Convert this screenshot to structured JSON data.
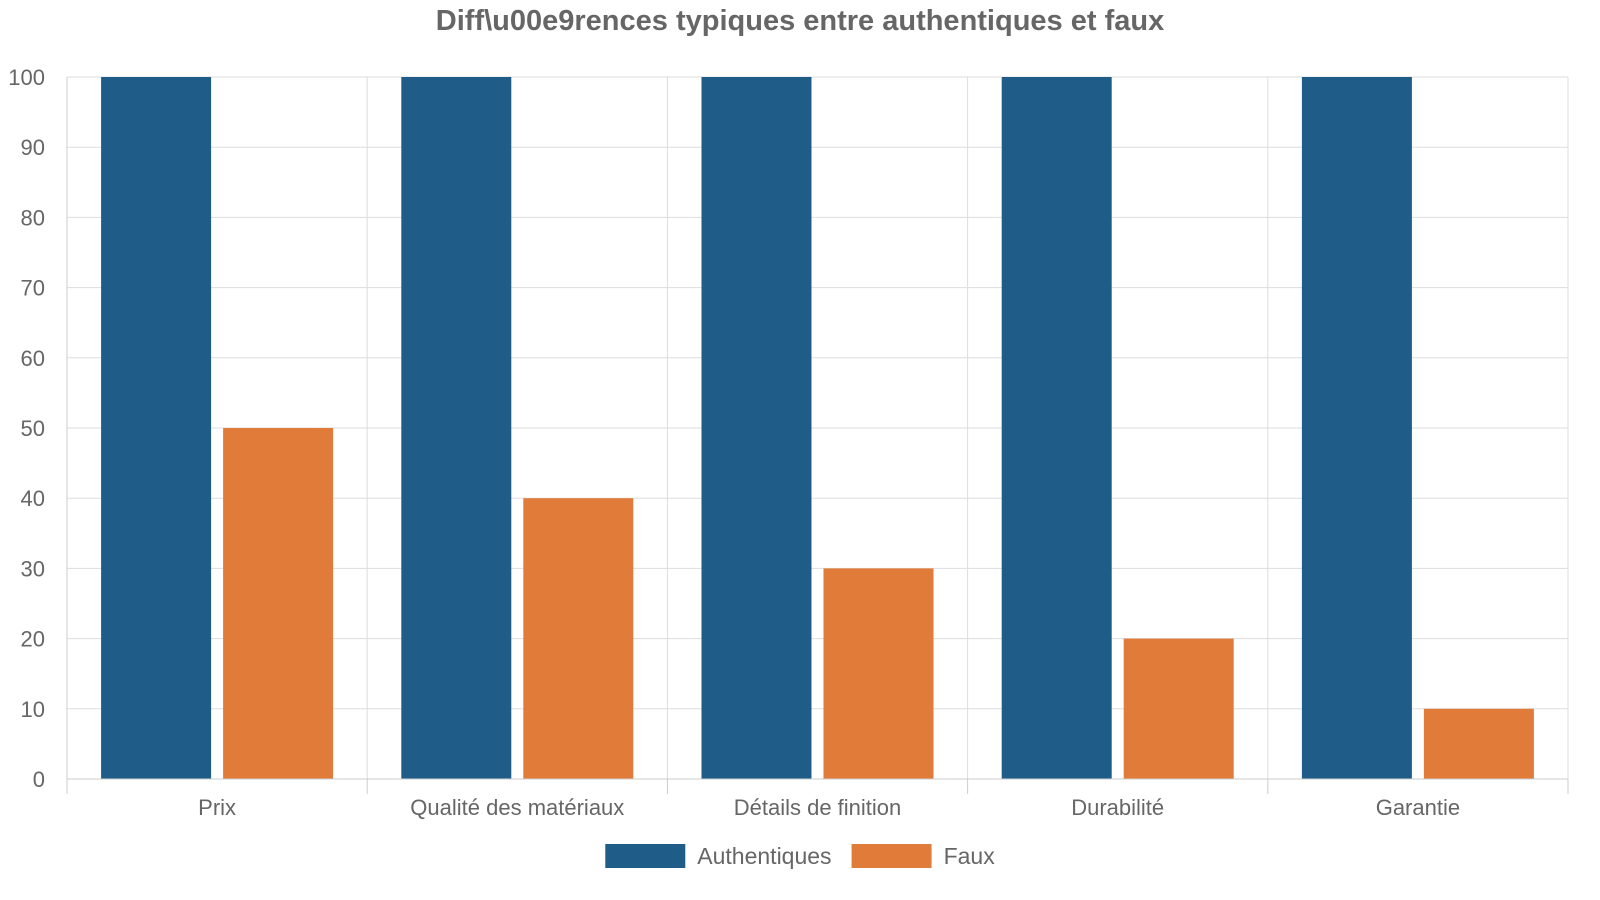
{
  "chart_data": {
    "type": "bar",
    "title": "Diff\\u00e9rences typiques entre authentiques et faux",
    "xlabel": "",
    "ylabel": "",
    "categories": [
      "Prix",
      "Qualité des matériaux",
      "Détails de finition",
      "Durabilité",
      "Garantie"
    ],
    "series": [
      {
        "name": "Authentiques",
        "values": [
          100,
          100,
          100,
          100,
          100
        ],
        "color": "#1f5c87"
      },
      {
        "name": "Faux",
        "values": [
          50,
          40,
          30,
          20,
          10
        ],
        "color": "#e07b39"
      }
    ],
    "ylim": [
      0,
      100
    ],
    "yticks": [
      0,
      10,
      20,
      30,
      40,
      50,
      60,
      70,
      80,
      90,
      100
    ],
    "grid": true,
    "legend": "bottom-center"
  }
}
